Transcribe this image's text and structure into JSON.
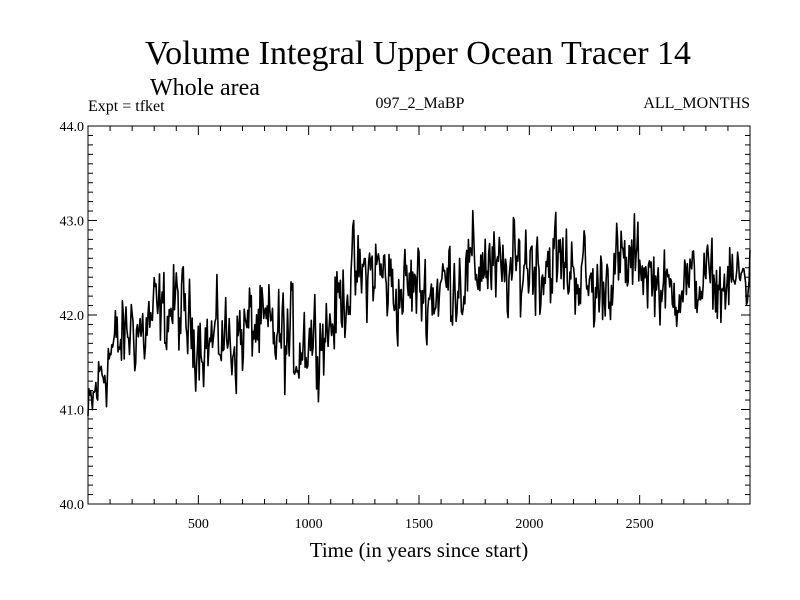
{
  "chart_data": {
    "type": "line",
    "title": "Volume Integral Upper Ocean Tracer 14",
    "subtitle": "Whole area",
    "experiment": "Expt = tfket",
    "run_label": "097_2_MaBP",
    "months_label": "ALL_MONTHS",
    "xlabel": "Time (in years since start)",
    "ylabel": "",
    "xlim": [
      0,
      3000
    ],
    "ylim": [
      40.0,
      44.0
    ],
    "x_ticks": [
      500,
      1000,
      1500,
      2000,
      2500
    ],
    "x_tick_labels": [
      "500",
      "1000",
      "1500",
      "2000",
      "2500"
    ],
    "y_ticks": [
      40.0,
      41.0,
      42.0,
      43.0,
      44.0
    ],
    "y_tick_labels": [
      "40.0",
      "41.0",
      "42.0",
      "43.0",
      "44.0"
    ],
    "grid": false,
    "series": [
      {
        "color": "#000000",
        "x": [
          0,
          50,
          100,
          150,
          200,
          250,
          300,
          350,
          400,
          450,
          500,
          550,
          600,
          650,
          700,
          750,
          800,
          850,
          900,
          950,
          1000,
          1050,
          1100,
          1150,
          1200,
          1250,
          1300,
          1350,
          1400,
          1450,
          1500,
          1550,
          1600,
          1650,
          1700,
          1750,
          1800,
          1850,
          1900,
          1950,
          2000,
          2050,
          2100,
          2150,
          2200,
          2250,
          2300,
          2350,
          2400,
          2450,
          2500,
          2550,
          2600,
          2650,
          2700,
          2750,
          2800,
          2850,
          2900,
          2950,
          3000
        ],
        "values": [
          40.9,
          41.3,
          41.6,
          41.7,
          41.9,
          41.8,
          42.0,
          42.0,
          42.1,
          41.9,
          41.8,
          41.7,
          41.8,
          41.7,
          41.8,
          41.9,
          41.8,
          41.8,
          41.7,
          41.7,
          41.8,
          41.8,
          41.9,
          42.2,
          42.4,
          42.4,
          42.5,
          42.4,
          42.2,
          42.3,
          42.3,
          42.2,
          42.3,
          42.4,
          42.4,
          42.5,
          42.6,
          42.4,
          42.4,
          42.5,
          42.6,
          42.5,
          42.6,
          42.5,
          42.5,
          42.4,
          42.2,
          42.4,
          42.5,
          42.5,
          42.6,
          42.4,
          42.3,
          42.2,
          42.4,
          42.3,
          42.4,
          42.3,
          42.3,
          42.4,
          42.4
        ],
        "fluctuation_amplitude": [
          0.4,
          0.5,
          0.55,
          0.55,
          0.55,
          0.55,
          0.55,
          0.55,
          0.6,
          0.55,
          0.55,
          0.55,
          0.55,
          0.55,
          0.6,
          0.55,
          0.6,
          0.6,
          0.65,
          0.65,
          0.6,
          0.55,
          0.55,
          0.55,
          0.55,
          0.55,
          0.55,
          0.6,
          0.55,
          0.55,
          0.55,
          0.55,
          0.55,
          0.6,
          0.6,
          0.6,
          0.6,
          0.55,
          0.55,
          0.6,
          0.65,
          0.6,
          0.6,
          0.6,
          0.55,
          0.55,
          0.6,
          0.5,
          0.55,
          0.55,
          0.5,
          0.5,
          0.45,
          0.45,
          0.45,
          0.45,
          0.45,
          0.45,
          0.45,
          0.45,
          0.45
        ]
      }
    ]
  }
}
